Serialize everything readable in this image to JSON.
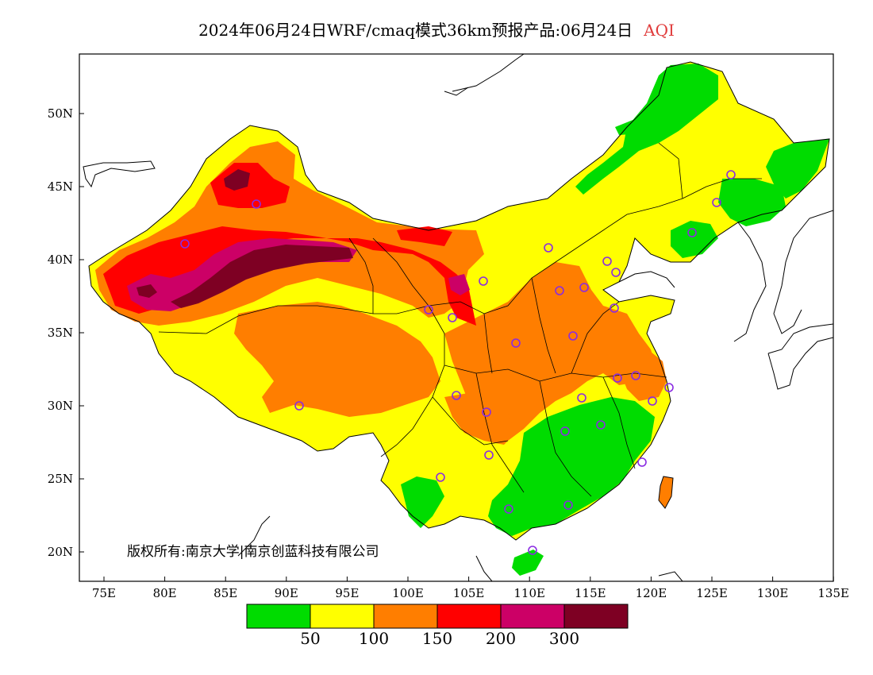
{
  "title": {
    "product": "2024年06月24日WRF/cmaq模式36km预报产品:06月24日",
    "variable": "AQI"
  },
  "copyright": "版权所有:南京大学|南京创蓝科技有限公司",
  "axes": {
    "lat_labels": [
      "50N",
      "45N",
      "40N",
      "35N",
      "30N",
      "25N",
      "20N"
    ],
    "lon_labels": [
      "75E",
      "80E",
      "85E",
      "90E",
      "95E",
      "100E",
      "105E",
      "110E",
      "115E",
      "120E",
      "125E",
      "130E",
      "135E"
    ]
  },
  "colorbar": {
    "colors": [
      "#00dc00",
      "#ffff00",
      "#ff7e00",
      "#ff0000",
      "#cc0066",
      "#7e0023"
    ],
    "tick_labels": [
      "50",
      "100",
      "150",
      "200",
      "300"
    ]
  }
}
